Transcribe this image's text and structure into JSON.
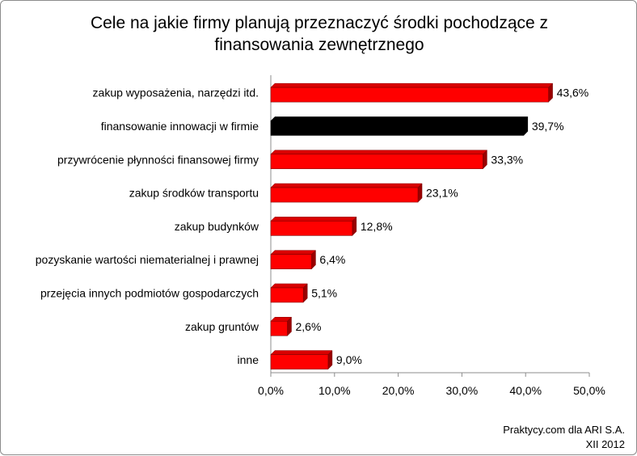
{
  "chart_data": {
    "type": "bar",
    "orientation": "horizontal",
    "title": "Cele na jakie firmy planują przeznaczyć środki pochodzące z finansowania zewnętrznego",
    "categories": [
      "zakup wyposażenia, narzędzi itd.",
      "finansowanie innowacji w firmie",
      "przywrócenie płynności finansowej firmy",
      "zakup środków transportu",
      "zakup budynków",
      "pozyskanie wartości niematerialnej i prawnej",
      "przejęcia innych podmiotów gospodarczych",
      "zakup gruntów",
      "inne"
    ],
    "values": [
      43.6,
      39.7,
      33.3,
      23.1,
      12.8,
      6.4,
      5.1,
      2.6,
      9.0
    ],
    "value_labels": [
      "43,6%",
      "39,7%",
      "33,3%",
      "23,1%",
      "12,8%",
      "6,4%",
      "5,1%",
      "2,6%",
      "9,0%"
    ],
    "bar_colors": [
      "#ff0000",
      "#000000",
      "#ff0000",
      "#ff0000",
      "#ff0000",
      "#ff0000",
      "#ff0000",
      "#ff0000",
      "#ff0000"
    ],
    "xlim": [
      0,
      50
    ],
    "xticks": [
      0,
      10,
      20,
      30,
      40,
      50
    ],
    "xtick_labels": [
      "0,0%",
      "10,0%",
      "20,0%",
      "30,0%",
      "40,0%",
      "50,0%"
    ],
    "grid": false,
    "legend": "none",
    "style": "3d-bar"
  },
  "footer": {
    "line1": "Praktycy.com dla ARI S.A.",
    "line2": "XII 2012"
  }
}
